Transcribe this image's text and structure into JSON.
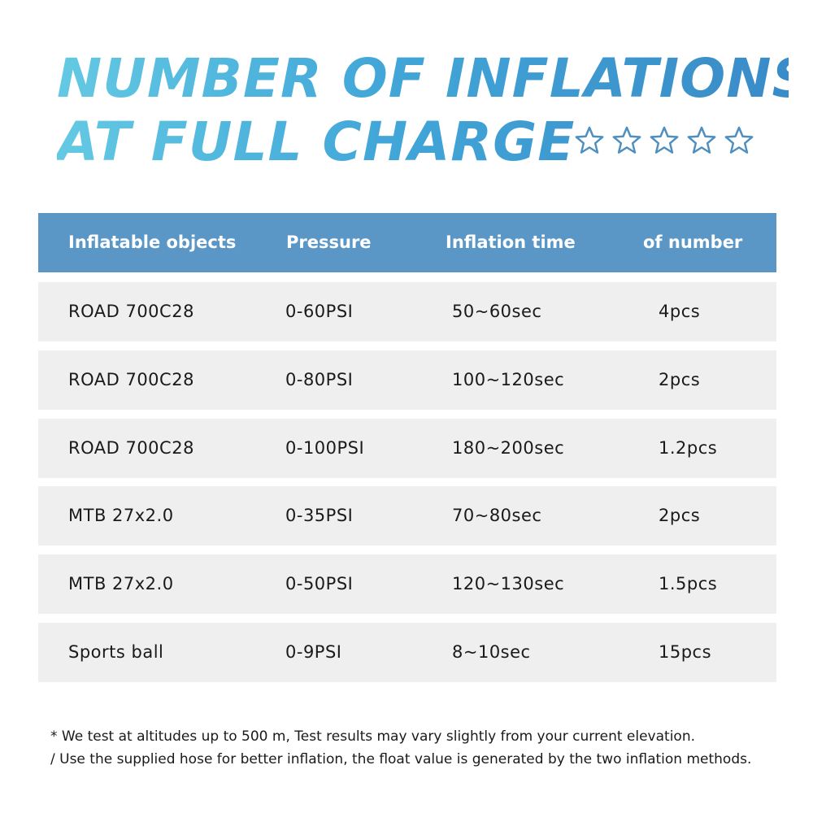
{
  "title": {
    "line1": "NUMBER OF INFLATIONS",
    "line2": "AT FULL CHARGE"
  },
  "rating": {
    "stars_total": 5,
    "stars_filled": 0,
    "icon": "star-outline-icon",
    "color": "#4e8fbf"
  },
  "colors": {
    "header_bg": "#5a97c6",
    "row_bg": "#efefef",
    "title_gradient": [
      "#63c9e3",
      "#3a8bc7"
    ]
  },
  "table": {
    "headers": [
      "Inflatable objects",
      "Pressure",
      "Inflation time",
      "of number"
    ],
    "rows": [
      [
        "ROAD 700C28",
        "0-60PSI",
        "50~60sec",
        "4pcs"
      ],
      [
        "ROAD 700C28",
        "0-80PSI",
        "100~120sec",
        "2pcs"
      ],
      [
        "ROAD 700C28",
        "0-100PSI",
        "180~200sec",
        "1.2pcs"
      ],
      [
        "MTB 27x2.0",
        "0-35PSI",
        "70~80sec",
        "2pcs"
      ],
      [
        "MTB 27x2.0",
        "0-50PSI",
        "120~130sec",
        "1.5pcs"
      ],
      [
        "Sports ball",
        "0-9PSI",
        "8~10sec",
        "15pcs"
      ]
    ]
  },
  "footnotes": [
    "* We test at altitudes up to 500 m, Test results may vary slightly from your current elevation.",
    "/ Use the supplied hose for better inflation, the float value is generated by the two inflation methods."
  ]
}
